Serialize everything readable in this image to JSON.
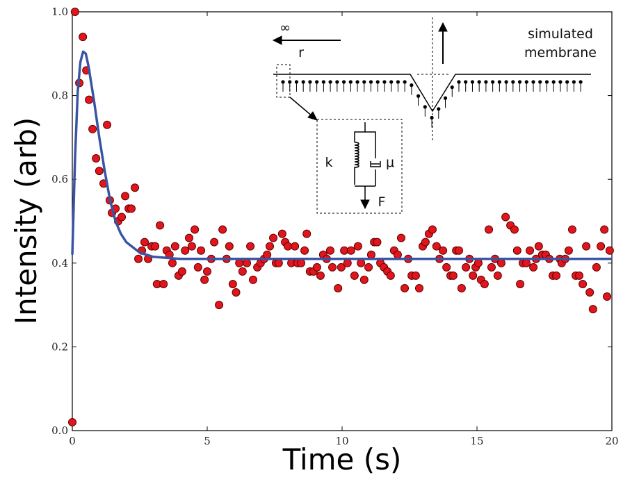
{
  "chart_data": {
    "type": "scatter",
    "xlabel": "Time (s)",
    "ylabel": "Intensity (arb)",
    "xlim": [
      0,
      20
    ],
    "ylim": [
      0,
      1
    ],
    "xticks": [
      0,
      5,
      10,
      15,
      20
    ],
    "yticks": [
      {
        "value": 0,
        "label": "0.0"
      },
      0.2,
      0.4,
      0.6,
      0.8,
      {
        "value": 1,
        "label": "1.0"
      }
    ],
    "annotations": [
      "∞",
      "r",
      "simulated",
      "membrane",
      "k",
      "μ",
      "F"
    ],
    "series": [
      {
        "type": "scatter",
        "color": "#e3151c",
        "x": [
          0,
          0.1,
          0.26,
          0.39,
          0.52,
          0.62,
          0.75,
          0.88,
          1.0,
          1.16,
          1.29,
          1.39,
          1.47,
          1.6,
          1.7,
          1.83,
          1.96,
          2.09,
          2.19,
          2.32,
          2.45,
          2.58,
          2.68,
          2.81,
          2.94,
          3.07,
          3.14,
          3.25,
          3.38,
          3.5,
          3.6,
          3.71,
          3.81,
          3.94,
          4.07,
          4.18,
          4.33,
          4.43,
          4.54,
          4.66,
          4.77,
          4.9,
          5.0,
          5.15,
          5.26,
          5.44,
          5.57,
          5.72,
          5.82,
          5.95,
          6.07,
          6.19,
          6.31,
          6.47,
          6.6,
          6.7,
          6.86,
          6.98,
          7.11,
          7.22,
          7.32,
          7.45,
          7.55,
          7.65,
          7.78,
          7.89,
          7.99,
          8.12,
          8.25,
          8.35,
          8.48,
          8.61,
          8.69,
          8.81,
          8.94,
          9.07,
          9.2,
          9.3,
          9.43,
          9.56,
          9.64,
          9.85,
          9.97,
          10.08,
          10.2,
          10.33,
          10.46,
          10.59,
          10.7,
          10.82,
          10.98,
          11.08,
          11.19,
          11.3,
          11.42,
          11.55,
          11.68,
          11.8,
          11.93,
          12.06,
          12.19,
          12.32,
          12.45,
          12.58,
          12.73,
          12.86,
          12.99,
          13.09,
          13.22,
          13.35,
          13.5,
          13.61,
          13.74,
          13.87,
          14.02,
          14.12,
          14.23,
          14.33,
          14.43,
          14.59,
          14.72,
          14.85,
          14.95,
          15.05,
          15.15,
          15.28,
          15.44,
          15.54,
          15.67,
          15.77,
          15.9,
          16.06,
          16.24,
          16.39,
          16.49,
          16.6,
          16.7,
          16.83,
          16.96,
          17.09,
          17.19,
          17.29,
          17.42,
          17.55,
          17.68,
          17.81,
          17.94,
          18.07,
          18.14,
          18.27,
          18.4,
          18.53,
          18.66,
          18.79,
          18.92,
          19.05,
          19.18,
          19.3,
          19.43,
          19.59,
          19.72,
          19.82,
          19.92
        ],
        "values": [
          0.02,
          1.0,
          0.83,
          0.94,
          0.86,
          0.79,
          0.72,
          0.65,
          0.62,
          0.59,
          0.73,
          0.55,
          0.52,
          0.53,
          0.5,
          0.51,
          0.56,
          0.53,
          0.53,
          0.58,
          0.41,
          0.43,
          0.45,
          0.41,
          0.44,
          0.44,
          0.35,
          0.49,
          0.35,
          0.43,
          0.42,
          0.4,
          0.44,
          0.37,
          0.38,
          0.43,
          0.46,
          0.44,
          0.48,
          0.39,
          0.43,
          0.36,
          0.38,
          0.41,
          0.45,
          0.3,
          0.48,
          0.41,
          0.44,
          0.35,
          0.33,
          0.4,
          0.38,
          0.4,
          0.44,
          0.36,
          0.39,
          0.4,
          0.41,
          0.42,
          0.44,
          0.46,
          0.4,
          0.4,
          0.47,
          0.45,
          0.44,
          0.4,
          0.44,
          0.4,
          0.4,
          0.43,
          0.47,
          0.38,
          0.38,
          0.39,
          0.37,
          0.42,
          0.41,
          0.43,
          0.39,
          0.34,
          0.39,
          0.43,
          0.4,
          0.43,
          0.37,
          0.44,
          0.4,
          0.36,
          0.39,
          0.42,
          0.45,
          0.45,
          0.4,
          0.39,
          0.38,
          0.37,
          0.43,
          0.42,
          0.46,
          0.34,
          0.41,
          0.37,
          0.37,
          0.34,
          0.44,
          0.45,
          0.47,
          0.48,
          0.44,
          0.41,
          0.43,
          0.39,
          0.37,
          0.37,
          0.43,
          0.43,
          0.34,
          0.39,
          0.41,
          0.37,
          0.39,
          0.4,
          0.36,
          0.35,
          0.48,
          0.39,
          0.41,
          0.37,
          0.4,
          0.51,
          0.49,
          0.48,
          0.43,
          0.35,
          0.4,
          0.4,
          0.43,
          0.39,
          0.41,
          0.44,
          0.42,
          0.42,
          0.41,
          0.37,
          0.37,
          0.41,
          0.4,
          0.41,
          0.43,
          0.48,
          0.37,
          0.37,
          0.35,
          0.44,
          0.33,
          0.29,
          0.39,
          0.44,
          0.48,
          0.32,
          0.43
        ]
      },
      {
        "type": "line",
        "color": "#3a54a4",
        "x": [
          0,
          0.1,
          0.2,
          0.3,
          0.4,
          0.5,
          0.6,
          0.8,
          1.0,
          1.2,
          1.4,
          1.6,
          1.8,
          2.0,
          2.5,
          3.0,
          4.0,
          20
        ],
        "values": [
          0.42,
          0.65,
          0.81,
          0.88,
          0.905,
          0.9,
          0.87,
          0.79,
          0.7,
          0.62,
          0.55,
          0.5,
          0.47,
          0.45,
          0.425,
          0.415,
          0.41,
          0.41
        ]
      }
    ]
  }
}
